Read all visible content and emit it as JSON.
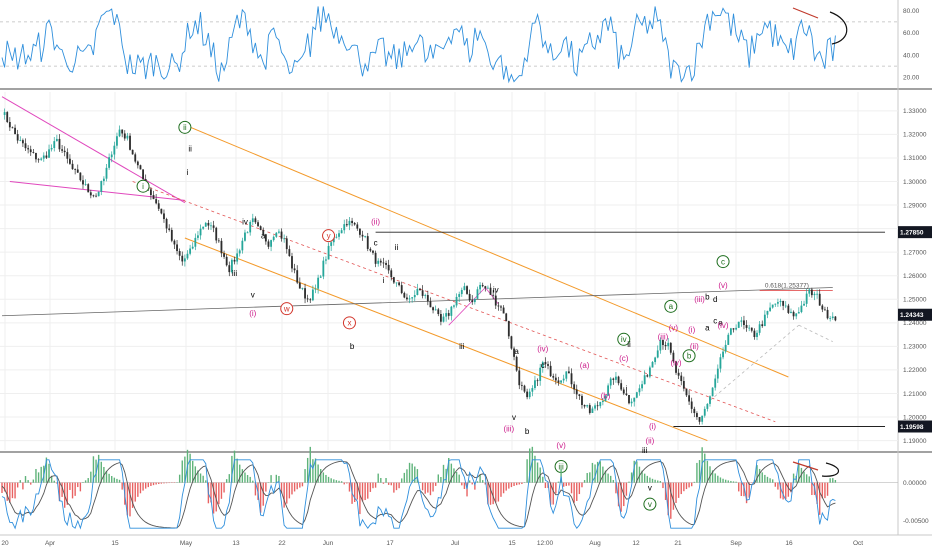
{
  "chart_data": {
    "type": "candlestick",
    "time_axis": {
      "tick_labels": [
        "20",
        "Apr",
        "15",
        "May",
        "13",
        "22",
        "Jun",
        "17",
        "Jul",
        "15",
        "12:00",
        "Aug",
        "12",
        "21",
        "Sep",
        "16",
        "Oct"
      ]
    },
    "price_panel": {
      "ylim": [
        1.186,
        1.338
      ],
      "y_ticks": [
        1.19,
        1.2,
        1.21,
        1.22,
        1.23,
        1.24,
        1.25,
        1.26,
        1.27,
        1.28,
        1.29,
        1.3,
        1.31,
        1.32,
        1.33
      ],
      "y_tick_labels": [
        "1.19000",
        "1.20000",
        "1.21000",
        "1.22000",
        "1.23000",
        "1.24000",
        "1.25000",
        "1.26000",
        "1.27000",
        "1.28000",
        "1.29000",
        "1.30000",
        "1.31000",
        "1.32000",
        "1.33000"
      ],
      "close_path": [
        [
          0,
          1.33
        ],
        [
          3,
          1.324
        ],
        [
          6,
          1.318
        ],
        [
          9,
          1.314
        ],
        [
          12,
          1.311
        ],
        [
          15,
          1.309
        ],
        [
          18,
          1.313
        ],
        [
          21,
          1.317
        ],
        [
          24,
          1.311
        ],
        [
          27,
          1.305
        ],
        [
          30,
          1.301
        ],
        [
          33,
          1.296
        ],
        [
          36,
          1.294
        ],
        [
          39,
          1.301
        ],
        [
          42,
          1.313
        ],
        [
          45,
          1.322
        ],
        [
          48,
          1.318
        ],
        [
          51,
          1.309
        ],
        [
          54,
          1.301
        ],
        [
          57,
          1.295
        ],
        [
          60,
          1.289
        ],
        [
          63,
          1.281
        ],
        [
          66,
          1.272
        ],
        [
          69,
          1.266
        ],
        [
          72,
          1.27
        ],
        [
          75,
          1.278
        ],
        [
          78,
          1.283
        ],
        [
          81,
          1.279
        ],
        [
          84,
          1.271
        ],
        [
          87,
          1.263
        ],
        [
          90,
          1.269
        ],
        [
          93,
          1.278
        ],
        [
          96,
          1.283
        ],
        [
          99,
          1.278
        ],
        [
          102,
          1.274
        ],
        [
          105,
          1.28
        ],
        [
          108,
          1.275
        ],
        [
          111,
          1.264
        ],
        [
          114,
          1.255
        ],
        [
          117,
          1.25
        ],
        [
          120,
          1.254
        ],
        [
          123,
          1.265
        ],
        [
          126,
          1.274
        ],
        [
          129,
          1.279
        ],
        [
          132,
          1.283
        ],
        [
          135,
          1.281
        ],
        [
          138,
          1.278
        ],
        [
          141,
          1.27
        ],
        [
          144,
          1.265
        ],
        [
          147,
          1.263
        ],
        [
          150,
          1.258
        ],
        [
          153,
          1.253
        ],
        [
          156,
          1.249
        ],
        [
          159,
          1.254
        ],
        [
          162,
          1.251
        ],
        [
          165,
          1.246
        ],
        [
          168,
          1.24
        ],
        [
          171,
          1.244
        ],
        [
          174,
          1.251
        ],
        [
          177,
          1.254
        ],
        [
          180,
          1.249
        ],
        [
          183,
          1.256
        ],
        [
          186,
          1.254
        ],
        [
          189,
          1.249
        ],
        [
          192,
          1.245
        ],
        [
          195,
          1.23
        ],
        [
          198,
          1.215
        ],
        [
          201,
          1.207
        ],
        [
          204,
          1.214
        ],
        [
          207,
          1.223
        ],
        [
          210,
          1.219
        ],
        [
          213,
          1.216
        ],
        [
          216,
          1.219
        ],
        [
          219,
          1.213
        ],
        [
          222,
          1.206
        ],
        [
          225,
          1.202
        ],
        [
          228,
          1.205
        ],
        [
          231,
          1.21
        ],
        [
          234,
          1.217
        ],
        [
          237,
          1.213
        ],
        [
          240,
          1.207
        ],
        [
          243,
          1.21
        ],
        [
          246,
          1.216
        ],
        [
          249,
          1.224
        ],
        [
          252,
          1.233
        ],
        [
          255,
          1.23
        ],
        [
          258,
          1.219
        ],
        [
          261,
          1.211
        ],
        [
          264,
          1.204
        ],
        [
          267,
          1.198
        ],
        [
          270,
          1.205
        ],
        [
          273,
          1.215
        ],
        [
          276,
          1.228
        ],
        [
          279,
          1.236
        ],
        [
          282,
          1.241
        ],
        [
          285,
          1.237
        ],
        [
          288,
          1.235
        ],
        [
          291,
          1.24
        ],
        [
          294,
          1.246
        ],
        [
          297,
          1.249
        ],
        [
          300,
          1.246
        ],
        [
          303,
          1.243
        ],
        [
          306,
          1.247
        ],
        [
          309,
          1.253
        ],
        [
          312,
          1.251
        ],
        [
          315,
          1.244
        ],
        [
          318,
          1.243
        ]
      ],
      "last_price": "1.24343",
      "level_tags": [
        "1.27850",
        "1.19598",
        "1.24343"
      ],
      "fib_label": "0.618(1.25377)",
      "wave_labels": [
        {
          "t": "i",
          "x": 54,
          "y": 1.298,
          "c": "#1e6e1e",
          "k": "circle"
        },
        {
          "t": "ii",
          "x": 70,
          "y": 1.323,
          "c": "#1e6e1e",
          "k": "circle"
        },
        {
          "t": "ii",
          "x": 72,
          "y": 1.314,
          "c": "#000000",
          "k": "text"
        },
        {
          "t": "i",
          "x": 71,
          "y": 1.304,
          "c": "#000000",
          "k": "text"
        },
        {
          "t": "iii",
          "x": 89,
          "y": 1.261,
          "c": "#000000",
          "k": "text"
        },
        {
          "t": "iv",
          "x": 93,
          "y": 1.283,
          "c": "#000000",
          "k": "text"
        },
        {
          "t": "v",
          "x": 96,
          "y": 1.252,
          "c": "#000000",
          "k": "text"
        },
        {
          "t": "(i)",
          "x": 96,
          "y": 1.244,
          "c": "#cc1a8a",
          "k": "text"
        },
        {
          "t": "a",
          "x": 100,
          "y": 1.277,
          "c": "#000000",
          "k": "text"
        },
        {
          "t": "w",
          "x": 109,
          "y": 1.246,
          "c": "#d2342a",
          "k": "circle"
        },
        {
          "t": "y",
          "x": 125,
          "y": 1.277,
          "c": "#d2342a",
          "k": "circle"
        },
        {
          "t": "x",
          "x": 133,
          "y": 1.24,
          "c": "#d2342a",
          "k": "circle"
        },
        {
          "t": "b",
          "x": 134,
          "y": 1.23,
          "c": "#000000",
          "k": "text"
        },
        {
          "t": "(ii)",
          "x": 143,
          "y": 1.283,
          "c": "#cc1a8a",
          "k": "text"
        },
        {
          "t": "c",
          "x": 143,
          "y": 1.274,
          "c": "#000000",
          "k": "text"
        },
        {
          "t": "ii",
          "x": 151,
          "y": 1.272,
          "c": "#000000",
          "k": "text"
        },
        {
          "t": "i",
          "x": 146,
          "y": 1.258,
          "c": "#000000",
          "k": "text"
        },
        {
          "t": "iv",
          "x": 189,
          "y": 1.254,
          "c": "#000000",
          "k": "text"
        },
        {
          "t": "iii",
          "x": 176,
          "y": 1.23,
          "c": "#000000",
          "k": "text"
        },
        {
          "t": "a",
          "x": 197,
          "y": 1.228,
          "c": "#000000",
          "k": "text"
        },
        {
          "t": "c",
          "x": 207,
          "y": 1.222,
          "c": "#000000",
          "k": "text"
        },
        {
          "t": "(iv)",
          "x": 207,
          "y": 1.229,
          "c": "#cc1a8a",
          "k": "text"
        },
        {
          "t": "v",
          "x": 196,
          "y": 1.2,
          "c": "#000000",
          "k": "text"
        },
        {
          "t": "(iii)",
          "x": 194,
          "y": 1.195,
          "c": "#cc1a8a",
          "k": "text"
        },
        {
          "t": "b",
          "x": 201,
          "y": 1.194,
          "c": "#000000",
          "k": "text"
        },
        {
          "t": "(v)",
          "x": 214,
          "y": 1.188,
          "c": "#cc1a8a",
          "k": "text"
        },
        {
          "t": "iii",
          "x": 214,
          "y": 1.179,
          "c": "#1e6e1e",
          "k": "circle"
        },
        {
          "t": "(a)",
          "x": 223,
          "y": 1.222,
          "c": "#cc1a8a",
          "k": "text"
        },
        {
          "t": "(b)",
          "x": 231,
          "y": 1.209,
          "c": "#cc1a8a",
          "k": "text"
        },
        {
          "t": "(c)",
          "x": 238,
          "y": 1.225,
          "c": "#cc1a8a",
          "k": "text"
        },
        {
          "t": "iv",
          "x": 238,
          "y": 1.233,
          "c": "#1e6e1e",
          "k": "circle"
        },
        {
          "t": "ii",
          "x": 240,
          "y": 1.231,
          "c": "#000000",
          "k": "text"
        },
        {
          "t": "i",
          "x": 239,
          "y": 1.212,
          "c": "#000000",
          "k": "text"
        },
        {
          "t": "iii",
          "x": 246,
          "y": 1.186,
          "c": "#000000",
          "k": "text"
        },
        {
          "t": "(ii)",
          "x": 248,
          "y": 1.19,
          "c": "#cc1a8a",
          "k": "text"
        },
        {
          "t": "(i)",
          "x": 249,
          "y": 1.196,
          "c": "#cc1a8a",
          "k": "text"
        },
        {
          "t": "v",
          "x": 248,
          "y": 1.17,
          "c": "#000000",
          "k": "text"
        },
        {
          "t": "v",
          "x": 248,
          "y": 1.163,
          "c": "#1e6e1e",
          "k": "circle"
        },
        {
          "t": "(iii)",
          "x": 253,
          "y": 1.234,
          "c": "#cc1a8a",
          "k": "text"
        },
        {
          "t": "(iv)",
          "x": 258,
          "y": 1.223,
          "c": "#cc1a8a",
          "k": "text"
        },
        {
          "t": "a",
          "x": 256,
          "y": 1.247,
          "c": "#1e6e1e",
          "k": "circle"
        },
        {
          "t": "(v)",
          "x": 257,
          "y": 1.238,
          "c": "#cc1a8a",
          "k": "text"
        },
        {
          "t": "(i)",
          "x": 264,
          "y": 1.237,
          "c": "#cc1a8a",
          "k": "text"
        },
        {
          "t": "(ii)",
          "x": 265,
          "y": 1.23,
          "c": "#cc1a8a",
          "k": "text"
        },
        {
          "t": "b",
          "x": 263,
          "y": 1.226,
          "c": "#1e6e1e",
          "k": "circle"
        },
        {
          "t": "(iii)",
          "x": 267,
          "y": 1.25,
          "c": "#cc1a8a",
          "k": "text"
        },
        {
          "t": "b",
          "x": 270,
          "y": 1.251,
          "c": "#000000",
          "k": "text"
        },
        {
          "t": "d",
          "x": 273,
          "y": 1.25,
          "c": "#000000",
          "k": "text"
        },
        {
          "t": "a",
          "x": 270,
          "y": 1.238,
          "c": "#000000",
          "k": "text"
        },
        {
          "t": "c",
          "x": 273,
          "y": 1.241,
          "c": "#000000",
          "k": "text"
        },
        {
          "t": "e",
          "x": 275,
          "y": 1.24,
          "c": "#000000",
          "k": "text"
        },
        {
          "t": "(iv)",
          "x": 276,
          "y": 1.239,
          "c": "#cc1a8a",
          "k": "text"
        },
        {
          "t": "c",
          "x": 276,
          "y": 1.266,
          "c": "#1e6e1e",
          "k": "circle"
        },
        {
          "t": "(v)",
          "x": 276,
          "y": 1.256,
          "c": "#cc1a8a",
          "k": "text"
        }
      ]
    },
    "rsi_panel": {
      "ylim": [
        12,
        88
      ],
      "y_ticks": [
        20,
        40,
        60,
        80
      ],
      "y_tick_labels": [
        "20.00",
        "40.00",
        "60.00",
        "80.00"
      ],
      "dashed_levels": [
        30,
        70
      ],
      "color": "#2f8fdc"
    },
    "macd_panel": {
      "ylim": [
        -0.0065,
        0.0035
      ],
      "y_ticks": [
        0,
        -0.005
      ],
      "y_tick_labels": [
        "0.00000",
        "-0.00500"
      ],
      "macd_color": "#2f8fdc",
      "signal_color": "#555555",
      "hist_pos": "#5fb37a",
      "hist_neg": "#e86262"
    },
    "colors": {
      "bull": "#26a69a",
      "bear": "#2d2d2d",
      "channel": "#f39a2b",
      "magenta": "#e048bd",
      "grid": "#efefef",
      "level_tag_bg": "#131722",
      "last_price_bg": "#131722"
    }
  }
}
